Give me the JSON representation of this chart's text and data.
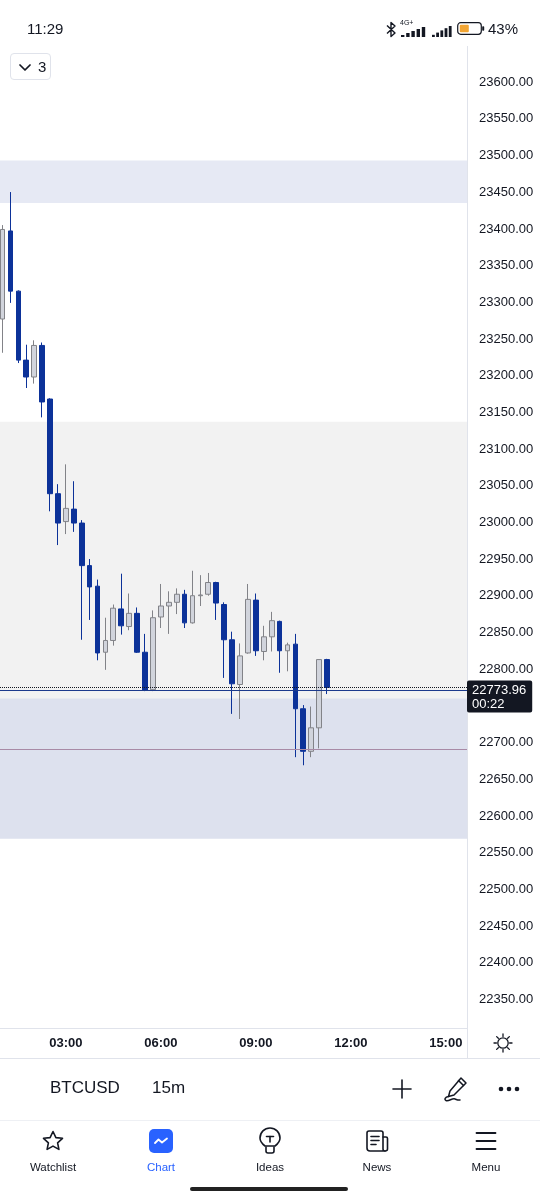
{
  "chart_data": {
    "type": "candlestick",
    "title": "BTCUSD",
    "subtitle": "15m",
    "x": [
      1,
      1.25,
      1.5,
      1.75,
      2,
      2.25,
      2.5,
      2.75,
      3,
      3.25,
      3.5,
      3.75,
      4,
      4.25,
      4.5,
      4.75,
      5,
      5.25,
      5.5,
      5.75,
      6,
      6.25,
      6.5,
      6.75,
      7,
      7.25,
      7.5,
      7.75,
      8,
      8.25,
      8.5,
      8.75,
      9,
      9.25,
      9.5,
      9.75,
      10,
      10.25,
      10.5,
      10.75,
      11,
      11.25
    ],
    "ohlc": [
      [
        23276,
        23404,
        23230,
        23398
      ],
      [
        23396,
        23449,
        23298,
        23314
      ],
      [
        23314,
        23315,
        23216,
        23220
      ],
      [
        23220,
        23241,
        23182,
        23197
      ],
      [
        23197,
        23247,
        23188,
        23240
      ],
      [
        23240,
        23244,
        23142,
        23163
      ],
      [
        23167,
        23168,
        23014,
        23038
      ],
      [
        23038,
        23051,
        22968,
        22998
      ],
      [
        23000,
        23078,
        22983,
        23018
      ],
      [
        23017,
        23055,
        22986,
        22998
      ],
      [
        22998,
        23002,
        22839,
        22940
      ],
      [
        22940,
        22949,
        22866,
        22911
      ],
      [
        22912,
        22921,
        22811,
        22821
      ],
      [
        22822,
        22869,
        22798,
        22838
      ],
      [
        22838,
        22887,
        22831,
        22882
      ],
      [
        22881,
        22929,
        22846,
        22858
      ],
      [
        22857,
        22902,
        22852,
        22875
      ],
      [
        22875,
        22883,
        22821,
        22822
      ],
      [
        22822,
        22847,
        22769,
        22770
      ],
      [
        22771,
        22879,
        22769,
        22869
      ],
      [
        22870,
        22915,
        22855,
        22885
      ],
      [
        22885,
        22905,
        22847,
        22890
      ],
      [
        22890,
        22909,
        22874,
        22901
      ],
      [
        22901,
        22907,
        22855,
        22862
      ],
      [
        22862,
        22933,
        22861,
        22899
      ],
      [
        22899,
        22927,
        22885,
        22900
      ],
      [
        22901,
        22930,
        22899,
        22917
      ],
      [
        22917,
        22918,
        22866,
        22889
      ],
      [
        22887,
        22890,
        22787,
        22839
      ],
      [
        22839,
        22850,
        22738,
        22779
      ],
      [
        22778,
        22834,
        22731,
        22817
      ],
      [
        22821,
        22915,
        22820,
        22894
      ],
      [
        22893,
        22902,
        22817,
        22824
      ],
      [
        22823,
        22858,
        22811,
        22843
      ],
      [
        22843,
        22877,
        22823,
        22865
      ],
      [
        22864,
        22865,
        22794,
        22824
      ],
      [
        22824,
        22835,
        22796,
        22832
      ],
      [
        22833,
        22847,
        22679,
        22745
      ],
      [
        22745,
        22750,
        22668,
        22687
      ],
      [
        22687,
        22748,
        22679,
        22719
      ],
      [
        22719,
        22812,
        22691,
        22812
      ],
      [
        22812,
        22813,
        22765,
        22773.96
      ]
    ],
    "colors": [
      "#d1d4dc",
      "#0c3299",
      "#0c3299",
      "#0c3299",
      "#d1d4dc",
      "#0c3299",
      "#0c3299",
      "#0c3299",
      "#d1d4dc",
      "#0c3299",
      "#0c3299",
      "#0c3299",
      "#0c3299",
      "#d1d4dc",
      "#d1d4dc",
      "#0c3299",
      "#d1d4dc",
      "#0c3299",
      "#0c3299",
      "#d1d4dc",
      "#d1d4dc",
      "#d1d4dc",
      "#d1d4dc",
      "#0c3299",
      "#d1d4dc",
      "#d1d4dc",
      "#d1d4dc",
      "#0c3299",
      "#0c3299",
      "#0c3299",
      "#d1d4dc",
      "#d1d4dc",
      "#0c3299",
      "#d1d4dc",
      "#d1d4dc",
      "#0c3299",
      "#d1d4dc",
      "#0c3299",
      "#0c3299",
      "#d1d4dc",
      "#d1d4dc",
      "#0c3299"
    ],
    "xlim": [
      0.92,
      15.67
    ],
    "xticks": [
      {
        "value": 3,
        "label": "03:00"
      },
      {
        "value": 6,
        "label": "06:00"
      },
      {
        "value": 9,
        "label": "09:00"
      },
      {
        "value": 12,
        "label": "12:00"
      },
      {
        "value": 15,
        "label": "15:00"
      }
    ],
    "ylim": [
      22310,
      23648
    ],
    "yticks": [
      {
        "value": 22350,
        "label": "22350.00"
      },
      {
        "value": 22400,
        "label": "22400.00"
      },
      {
        "value": 22450,
        "label": "22450.00"
      },
      {
        "value": 22500,
        "label": "22500.00"
      },
      {
        "value": 22550,
        "label": "22550.00"
      },
      {
        "value": 22600,
        "label": "22600.00"
      },
      {
        "value": 22650,
        "label": "22650.00"
      },
      {
        "value": 22700,
        "label": "22700.00"
      },
      {
        "value": 22800,
        "label": "22800.00"
      },
      {
        "value": 22850,
        "label": "22850.00"
      },
      {
        "value": 22900,
        "label": "22900.00"
      },
      {
        "value": 22950,
        "label": "22950.00"
      },
      {
        "value": 23000,
        "label": "23000.00"
      },
      {
        "value": 23050,
        "label": "23050.00"
      },
      {
        "value": 23100,
        "label": "23100.00"
      },
      {
        "value": 23150,
        "label": "23150.00"
      },
      {
        "value": 23200,
        "label": "23200.00"
      },
      {
        "value": 23250,
        "label": "23250.00"
      },
      {
        "value": 23300,
        "label": "23300.00"
      },
      {
        "value": 23350,
        "label": "23350.00"
      },
      {
        "value": 23400,
        "label": "23400.00"
      },
      {
        "value": 23450,
        "label": "23450.00"
      },
      {
        "value": 23500,
        "label": "23500.00"
      },
      {
        "value": 23550,
        "label": "23550.00"
      },
      {
        "value": 23600,
        "label": "23600.00"
      }
    ],
    "bands": [
      {
        "axis": "y",
        "from": 22569,
        "to": 23136,
        "color": "#f2f2f2"
      },
      {
        "axis": "y",
        "from": 22568,
        "to": 22759,
        "color": "#dde1ee"
      },
      {
        "axis": "y",
        "from": 23434,
        "to": 23492,
        "color": "#e6e9f4"
      }
    ],
    "ref_lines": [
      {
        "axis": "y",
        "value": 22773.96,
        "label": "22773.96\n00:22",
        "color": "#131722",
        "line_style": "dotted"
      },
      {
        "axis": "y",
        "value": 22770,
        "color": "#1c3a8c",
        "line_style": "solid"
      },
      {
        "axis": "y",
        "value": 22690,
        "color": "#a88aa6",
        "line_style": "solid"
      }
    ],
    "annotations": [
      "11:29",
      "4G+",
      "43%",
      "3",
      "Watchlist",
      "Chart",
      "Ideas",
      "News",
      "Menu"
    ]
  }
}
